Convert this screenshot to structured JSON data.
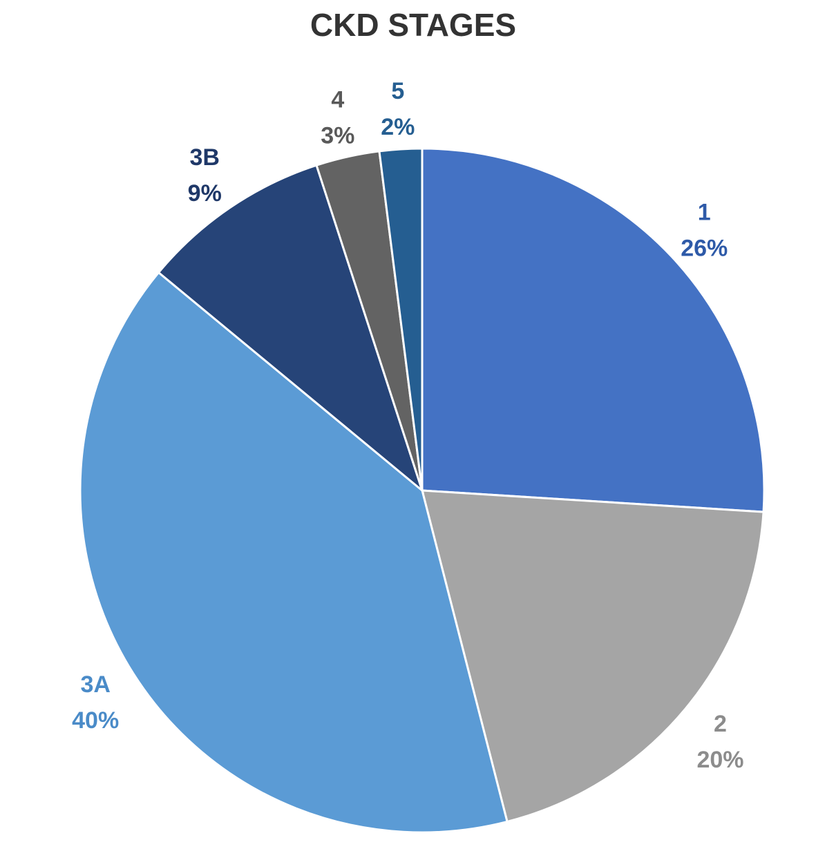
{
  "chart_data": {
    "type": "pie",
    "title": "CKD STAGES",
    "start_angle_deg": 0,
    "direction": "clockwise",
    "slices": [
      {
        "label": "1",
        "value": 26,
        "value_label": "26%",
        "color": "#4472C4",
        "label_color": "#2E5AA8"
      },
      {
        "label": "2",
        "value": 20,
        "value_label": "20%",
        "color": "#A5A5A5",
        "label_color": "#8C8C8C"
      },
      {
        "label": "3A",
        "value": 40,
        "value_label": "40%",
        "color": "#5B9BD5",
        "label_color": "#4A8BC8"
      },
      {
        "label": "3B",
        "value": 9,
        "value_label": "9%",
        "color": "#264478",
        "label_color": "#1F3868"
      },
      {
        "label": "4",
        "value": 3,
        "value_label": "3%",
        "color": "#636363",
        "label_color": "#595959"
      },
      {
        "label": "5",
        "value": 2,
        "value_label": "2%",
        "color": "#255E91",
        "label_color": "#255E91"
      }
    ],
    "slice_border_color": "#ffffff"
  }
}
